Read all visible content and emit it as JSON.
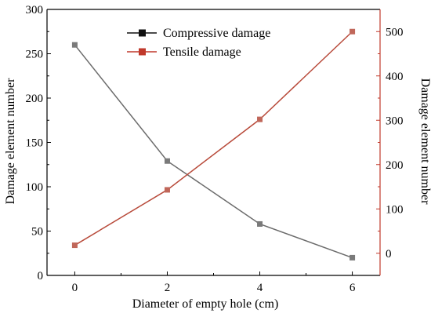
{
  "chart_data": {
    "type": "line",
    "title": "",
    "xlabel": "Diameter of empty hole (cm)",
    "x": [
      0,
      2,
      4,
      6
    ],
    "x_ticks": [
      "0",
      "2",
      "4",
      "6"
    ],
    "xlim": [
      -0.6,
      6.6
    ],
    "y_left": {
      "label": "Damage element number",
      "ylim": [
        0,
        300
      ],
      "ticks": [
        "0",
        "50",
        "100",
        "150",
        "200",
        "250",
        "300"
      ],
      "color": "#000000"
    },
    "y_right": {
      "label": "Damage element number",
      "ylim": [
        -50,
        550
      ],
      "ticks": [
        "0",
        "100",
        "200",
        "300",
        "400",
        "500"
      ],
      "color": "#c0392b"
    },
    "series": [
      {
        "name": "Compressive damage",
        "axis": "left",
        "values": [
          260,
          129,
          58,
          20
        ],
        "line_color": "#6b6b6b",
        "marker_color": "#7a7a7a",
        "legend_marker_color": "#111111",
        "legend_line_color": "#111111"
      },
      {
        "name": "Tensile damage",
        "axis": "right",
        "values": [
          18,
          143,
          302,
          500
        ],
        "line_color": "#b84a3a",
        "marker_color": "#c0675a",
        "legend_marker_color": "#c0392b",
        "legend_line_color": "#c0392b"
      }
    ],
    "legend_position": "top-center",
    "grid": false
  }
}
